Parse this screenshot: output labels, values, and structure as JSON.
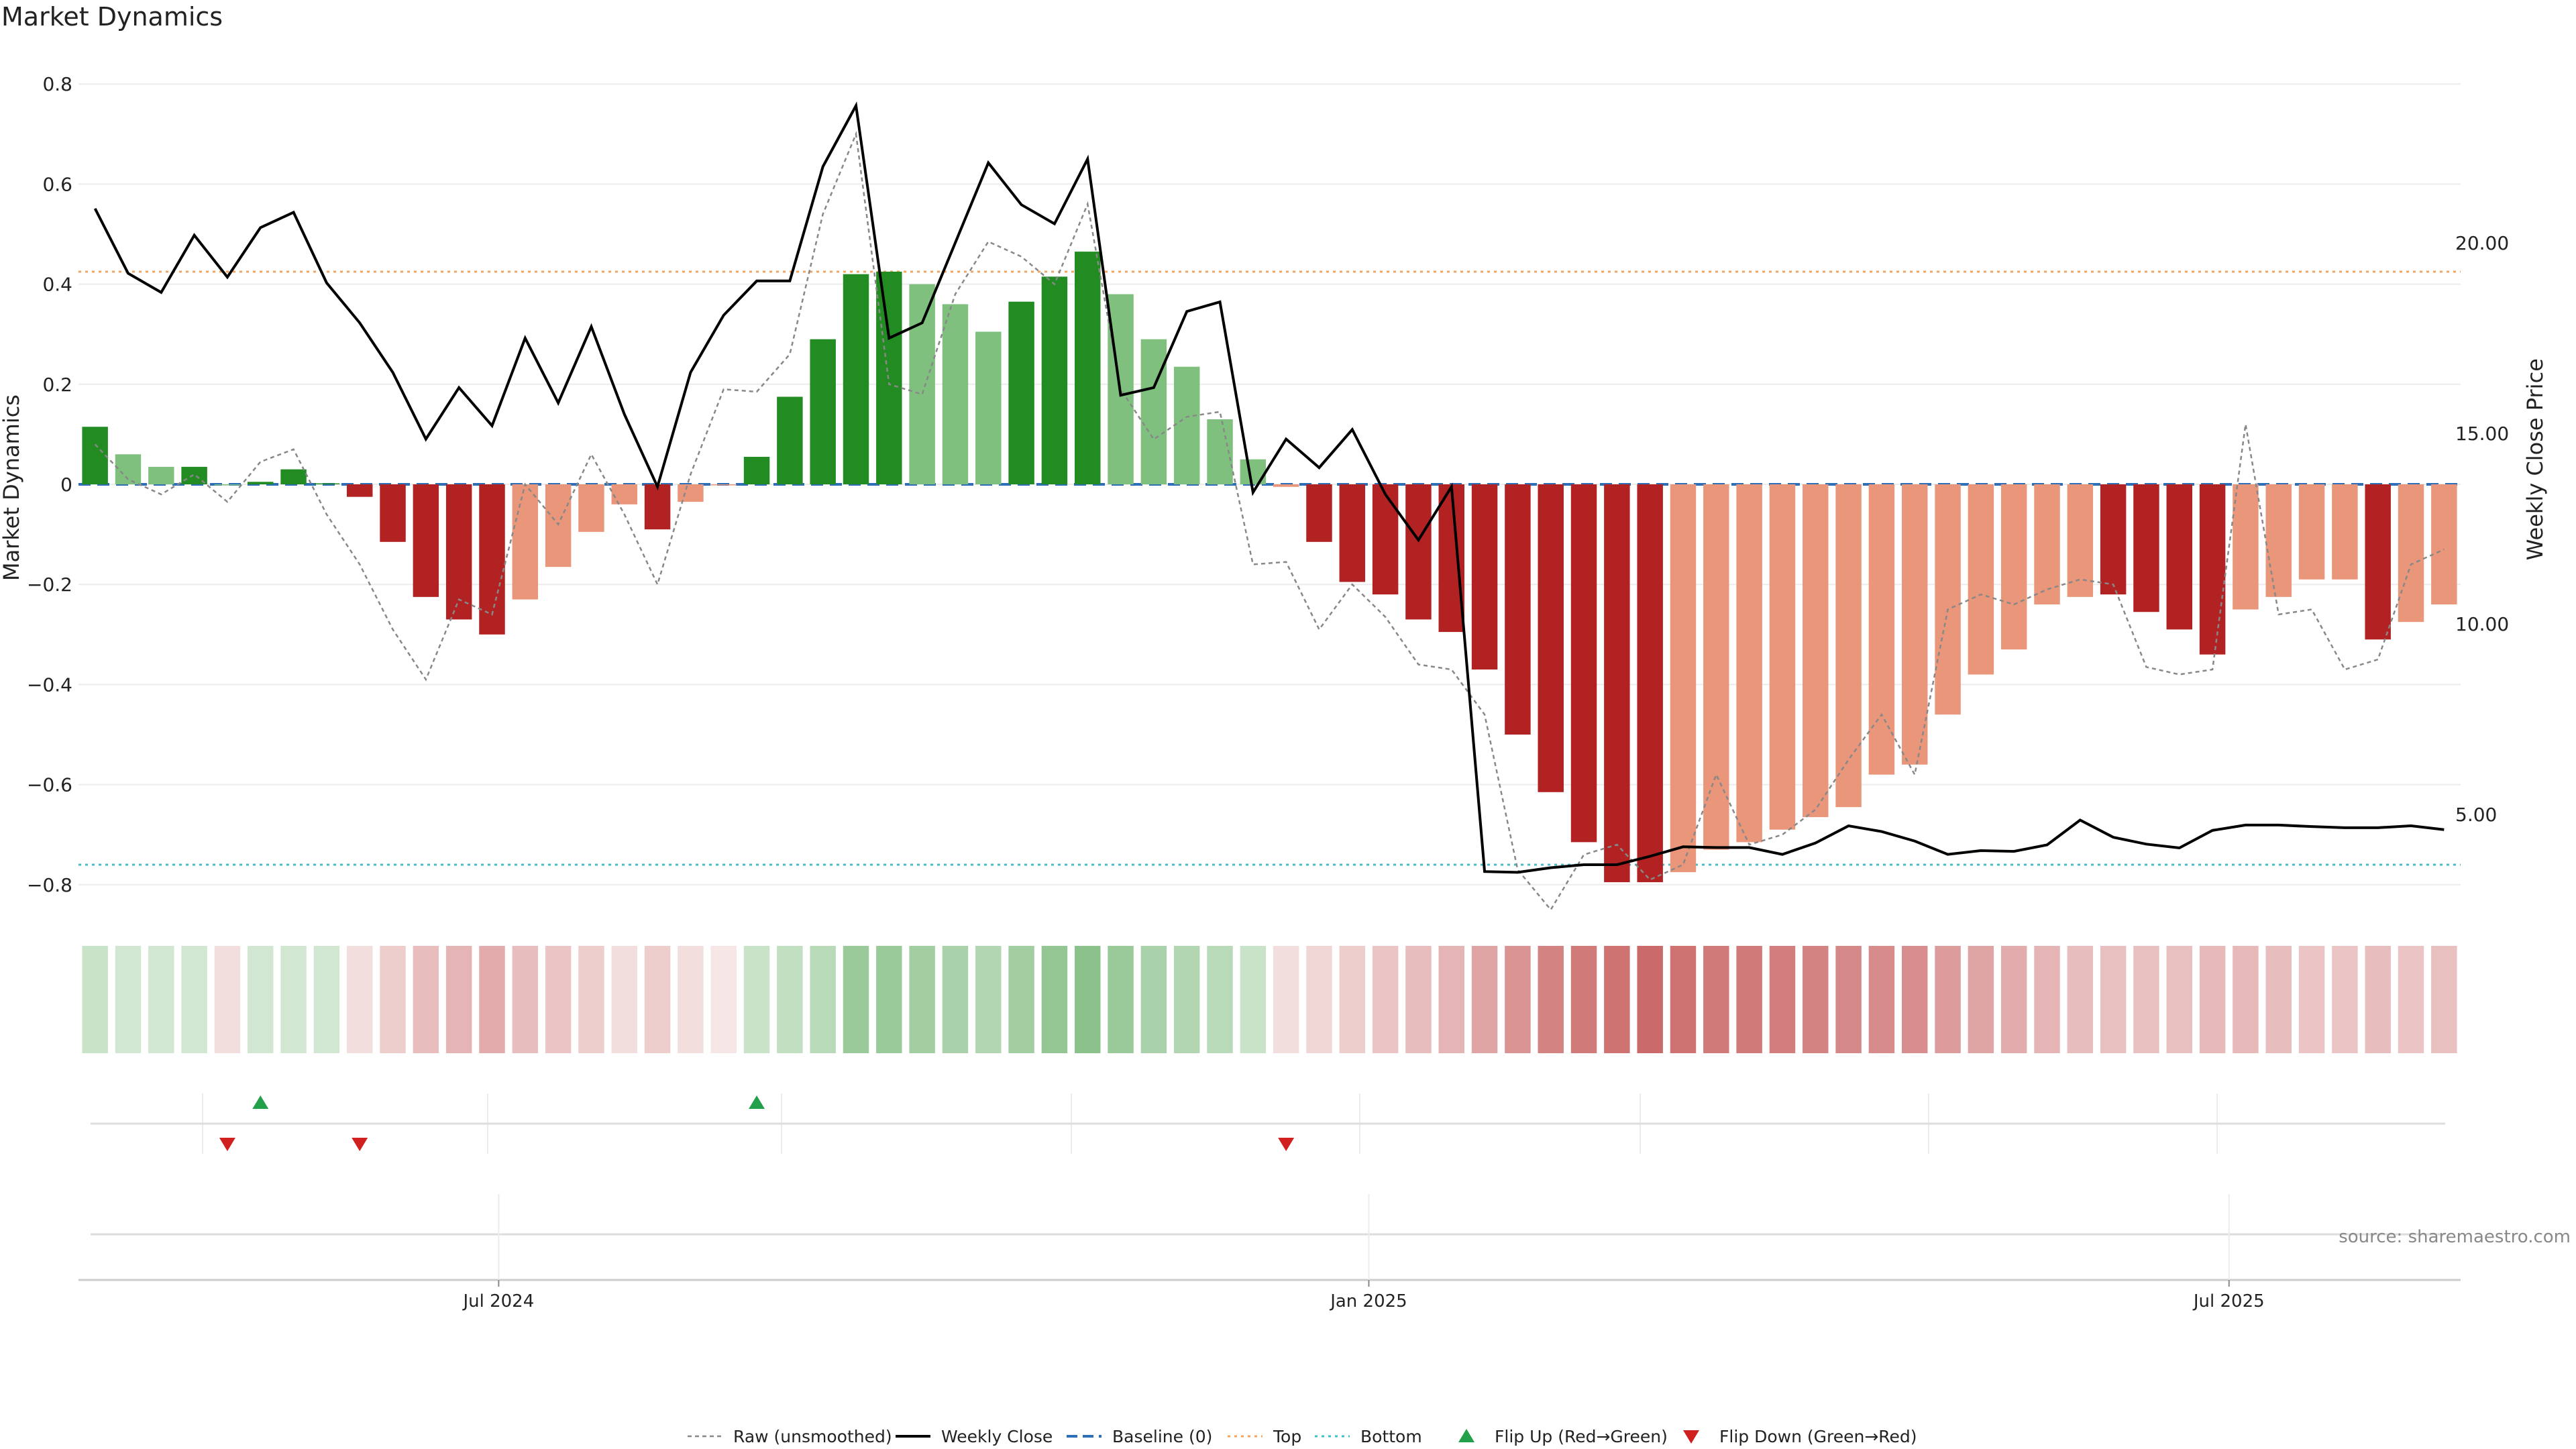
{
  "chart_data": {
    "type": "bar",
    "title": "Market Dynamics",
    "source": "source: sharemaestro.com",
    "left_axis": {
      "label": "Market Dynamics",
      "ylim": [
        -0.85,
        0.82
      ],
      "ticks": [
        -0.8,
        -0.6,
        -0.4,
        -0.2,
        0,
        0.2,
        0.4,
        0.6,
        0.8
      ],
      "tick_labels": [
        "−0.8",
        "−0.6",
        "−0.4",
        "−0.2",
        "0",
        "0.2",
        "0.4",
        "0.6",
        "0.8"
      ]
    },
    "right_axis": {
      "label": "Weekly Close Price",
      "ticks": [
        5,
        10,
        15,
        20
      ],
      "tick_labels": [
        "5.00",
        "10.00",
        "15.00",
        "20.00"
      ]
    },
    "x_axis": {
      "tick_labels": [
        "Jul 2024",
        "Jan 2025",
        "Jul 2025"
      ],
      "tick_index": [
        12.2,
        38.5,
        64.5
      ]
    },
    "grid": true,
    "legend_position": "bottom-center",
    "reference_lines": {
      "baseline": 0,
      "top": 0.425,
      "bottom": -0.76
    },
    "colors": {
      "strong_green": "#228b22",
      "light_green": "#7fc07f",
      "strong_red": "#b22222",
      "light_red": "#e9967a",
      "raw": "#888888",
      "close": "#000000",
      "baseline": "#2e6fb7",
      "top": "#f4a460",
      "bottom": "#40c0c8",
      "flip_up": "#22a04a",
      "flip_down": "#d02020"
    },
    "bars": {
      "values": [
        0.115,
        0.06,
        0.035,
        0.035,
        0,
        0.005,
        0.03,
        0.002,
        -0.025,
        -0.115,
        -0.225,
        -0.27,
        -0.3,
        -0.23,
        -0.165,
        -0.095,
        -0.04,
        -0.09,
        -0.035,
        -0.002,
        0.055,
        0.175,
        0.29,
        0.42,
        0.425,
        0.4,
        0.36,
        0.305,
        0.365,
        0.415,
        0.465,
        0.38,
        0.29,
        0.235,
        0.13,
        0.05,
        -0.005,
        -0.115,
        -0.195,
        -0.22,
        -0.27,
        -0.295,
        -0.37,
        -0.5,
        -0.615,
        -0.715,
        -0.795,
        -0.795,
        -0.775,
        -0.73,
        -0.715,
        -0.69,
        -0.665,
        -0.645,
        -0.58,
        -0.56,
        -0.46,
        -0.38,
        -0.33,
        -0.24,
        -0.225,
        -0.22,
        -0.255,
        -0.29,
        -0.34,
        -0.25,
        -0.225,
        -0.19,
        -0.19,
        -0.31,
        -0.275,
        -0.24
      ],
      "strength": [
        "strong",
        "light",
        "light",
        "strong",
        "light",
        "strong",
        "strong",
        "strong",
        "strong",
        "strong",
        "strong",
        "strong",
        "strong",
        "light",
        "light",
        "light",
        "light",
        "strong",
        "light",
        "light",
        "strong",
        "strong",
        "strong",
        "strong",
        "strong",
        "light",
        "light",
        "light",
        "strong",
        "strong",
        "strong",
        "light",
        "light",
        "light",
        "light",
        "light",
        "light",
        "strong",
        "strong",
        "strong",
        "strong",
        "strong",
        "strong",
        "strong",
        "strong",
        "strong",
        "strong",
        "strong",
        "light",
        "light",
        "light",
        "light",
        "light",
        "light",
        "light",
        "light",
        "light",
        "light",
        "light",
        "light",
        "light",
        "strong",
        "strong",
        "strong",
        "strong",
        "light",
        "light",
        "light",
        "light",
        "strong",
        "light",
        "light"
      ]
    },
    "raw_series": [
      0.08,
      0.01,
      -0.02,
      0.02,
      -0.035,
      0.045,
      0.07,
      -0.06,
      -0.16,
      -0.29,
      -0.39,
      -0.23,
      -0.26,
      0.0,
      -0.08,
      0.06,
      -0.06,
      -0.2,
      0.02,
      0.19,
      0.185,
      0.26,
      0.54,
      0.7,
      0.2,
      0.18,
      0.38,
      0.485,
      0.455,
      0.4,
      0.56,
      0.19,
      0.09,
      0.135,
      0.145,
      -0.16,
      -0.155,
      -0.29,
      -0.2,
      -0.265,
      -0.36,
      -0.37,
      -0.46,
      -0.77,
      -0.85,
      -0.74,
      -0.72,
      -0.79,
      -0.76,
      -0.58,
      -0.72,
      -0.7,
      -0.65,
      -0.55,
      -0.46,
      -0.58,
      -0.25,
      -0.22,
      -0.24,
      -0.21,
      -0.19,
      -0.2,
      -0.365,
      -0.38,
      -0.37,
      0.12,
      -0.26,
      -0.25,
      -0.37,
      -0.35,
      -0.16,
      -0.13
    ],
    "weekly_close": [
      20.9,
      19.2,
      18.7,
      20.2,
      19.1,
      20.4,
      20.8,
      18.95,
      17.9,
      16.6,
      14.85,
      16.2,
      15.2,
      17.5,
      15.8,
      17.8,
      15.5,
      13.6,
      16.6,
      18.1,
      19.0,
      19.0,
      22.0,
      23.6,
      17.5,
      17.9,
      20.0,
      22.1,
      21.0,
      20.5,
      22.2,
      16.0,
      16.2,
      18.2,
      18.45,
      13.45,
      14.85,
      14.1,
      15.1,
      13.4,
      12.2,
      13.6,
      3.5,
      3.48,
      3.6,
      3.68,
      3.68,
      3.9,
      4.15,
      4.13,
      4.13,
      3.95,
      4.25,
      4.7,
      4.55,
      4.3,
      3.95,
      4.05,
      4.03,
      4.2,
      4.85,
      4.4,
      4.22,
      4.12,
      4.58,
      4.72,
      4.72,
      4.68,
      4.65,
      4.65,
      4.7,
      4.6
    ],
    "heat_strip": [
      0.35,
      0.3,
      0.3,
      0.3,
      -0.2,
      0.3,
      0.3,
      0.3,
      -0.2,
      -0.3,
      -0.4,
      -0.45,
      -0.5,
      -0.4,
      -0.35,
      -0.3,
      -0.2,
      -0.3,
      -0.2,
      -0.15,
      0.35,
      0.4,
      0.45,
      0.65,
      0.65,
      0.6,
      0.55,
      0.5,
      0.6,
      0.7,
      0.75,
      0.65,
      0.55,
      0.5,
      0.45,
      0.35,
      -0.2,
      -0.25,
      -0.3,
      -0.35,
      -0.4,
      -0.45,
      -0.55,
      -0.65,
      -0.75,
      -0.8,
      -0.85,
      -0.9,
      -0.85,
      -0.8,
      -0.8,
      -0.78,
      -0.75,
      -0.72,
      -0.7,
      -0.68,
      -0.6,
      -0.55,
      -0.5,
      -0.45,
      -0.4,
      -0.38,
      -0.38,
      -0.38,
      -0.42,
      -0.42,
      -0.4,
      -0.35,
      -0.35,
      -0.4,
      -0.35,
      -0.38
    ],
    "flips_up": [
      5,
      20
    ],
    "flips_down": [
      4,
      8,
      36
    ],
    "legend": [
      {
        "key": "raw",
        "label": "Raw (unsmoothed)"
      },
      {
        "key": "close",
        "label": "Weekly Close"
      },
      {
        "key": "baseline",
        "label": "Baseline (0)"
      },
      {
        "key": "top",
        "label": "Top"
      },
      {
        "key": "bottom",
        "label": "Bottom"
      },
      {
        "key": "flip_up",
        "label": "Flip Up (Red→Green)"
      },
      {
        "key": "flip_down",
        "label": "Flip Down (Green→Red)"
      }
    ]
  }
}
